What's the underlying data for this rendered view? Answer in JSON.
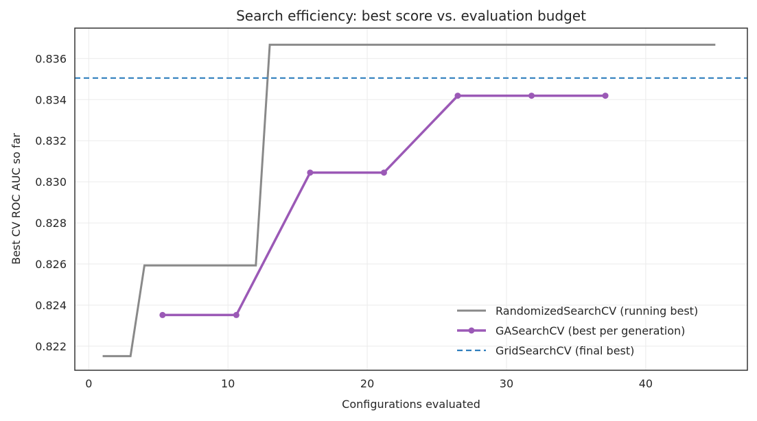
{
  "chart_data": {
    "type": "line",
    "title": "Search efficiency: best score vs. evaluation budget",
    "xlabel": "Configurations evaluated",
    "ylabel": "Best CV ROC AUC so far",
    "xlim": [
      -1,
      47.3
    ],
    "ylim": [
      0.82083,
      0.83748
    ],
    "x_ticks": [
      0,
      10,
      20,
      30,
      40
    ],
    "x_tick_labels": [
      "0",
      "10",
      "20",
      "30",
      "40"
    ],
    "y_ticks": [
      0.822,
      0.824,
      0.826,
      0.828,
      0.83,
      0.832,
      0.834,
      0.836
    ],
    "y_tick_labels": [
      "0.822",
      "0.824",
      "0.826",
      "0.828",
      "0.830",
      "0.832",
      "0.834",
      "0.836"
    ],
    "grid": true,
    "legend_position": "lower-right",
    "series": [
      {
        "name": "RandomizedSearchCV (running best)",
        "style": "solid",
        "color": "#898989",
        "markers": false,
        "x": [
          1,
          3,
          4,
          12,
          13,
          45
        ],
        "y": [
          0.82152,
          0.82152,
          0.82593,
          0.82593,
          0.83667,
          0.83667
        ]
      },
      {
        "name": "GASearchCV (best per generation)",
        "style": "solid",
        "color": "#9b59b6",
        "markers": true,
        "x": [
          5.3,
          10.6,
          15.9,
          21.2,
          26.5,
          31.8,
          37.1
        ],
        "y": [
          0.82352,
          0.82352,
          0.83045,
          0.83045,
          0.83419,
          0.83419,
          0.83419
        ]
      },
      {
        "name": "GridSearchCV (final best)",
        "style": "dashed",
        "color": "#2e7ebd",
        "markers": false,
        "hline": 0.83505
      }
    ]
  }
}
